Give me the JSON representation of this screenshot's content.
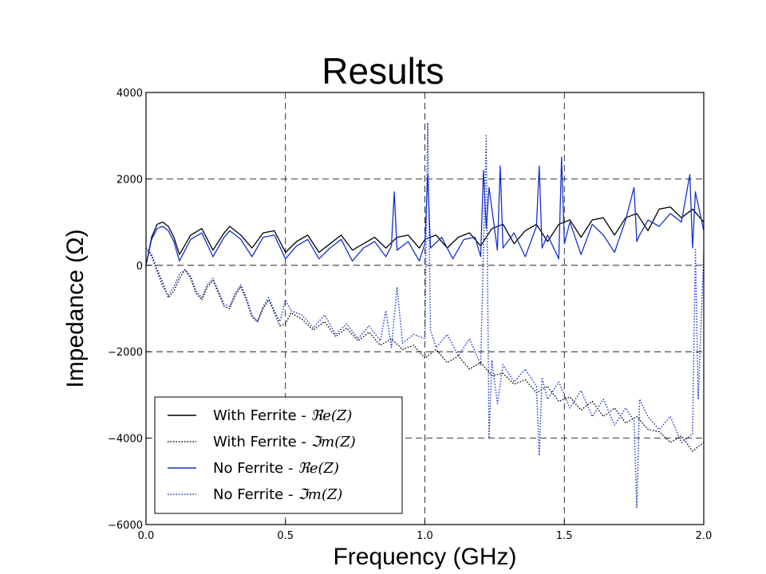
{
  "slide": {
    "title": "Results"
  },
  "chart_data": {
    "type": "line",
    "xlabel": "Frequency (GHz)",
    "ylabel": "Impedance (Ω)",
    "xlim": [
      0.0,
      2.0
    ],
    "ylim": [
      -6000,
      4000
    ],
    "xticks": [
      0.0,
      0.5,
      1.0,
      1.5,
      2.0
    ],
    "xtick_labels": [
      "0.0",
      "0.5",
      "1.0",
      "1.5",
      "2.0"
    ],
    "yticks": [
      -6000,
      -4000,
      -2000,
      0,
      2000,
      4000
    ],
    "ytick_labels": [
      "−6000",
      "−4000",
      "−2000",
      "0",
      "2000",
      "4000"
    ],
    "grid": "dashed, major ticks",
    "legend_position": "lower-left",
    "series": [
      {
        "name": "With Ferrite - ℜe(Z)",
        "label_prefix": "With Ferrite - ",
        "label_math": "ℜe(Z)",
        "color": "#000000",
        "style": "solid",
        "x": [
          0.0,
          0.02,
          0.04,
          0.06,
          0.08,
          0.1,
          0.12,
          0.16,
          0.2,
          0.24,
          0.28,
          0.3,
          0.34,
          0.38,
          0.42,
          0.46,
          0.5,
          0.54,
          0.58,
          0.62,
          0.66,
          0.7,
          0.74,
          0.78,
          0.82,
          0.86,
          0.9,
          0.94,
          0.98,
          1.0,
          1.04,
          1.08,
          1.12,
          1.16,
          1.2,
          1.24,
          1.28,
          1.32,
          1.36,
          1.4,
          1.44,
          1.48,
          1.52,
          1.56,
          1.6,
          1.64,
          1.68,
          1.72,
          1.76,
          1.8,
          1.84,
          1.88,
          1.92,
          1.96,
          2.0
        ],
        "y": [
          0,
          650,
          950,
          1000,
          900,
          650,
          250,
          700,
          850,
          350,
          750,
          900,
          700,
          400,
          750,
          800,
          300,
          550,
          700,
          300,
          500,
          700,
          350,
          500,
          650,
          400,
          650,
          700,
          400,
          600,
          700,
          400,
          650,
          750,
          450,
          850,
          950,
          500,
          800,
          950,
          550,
          950,
          1050,
          650,
          1050,
          1100,
          700,
          1100,
          1200,
          800,
          1300,
          1350,
          1100,
          1300,
          1000
        ]
      },
      {
        "name": "With Ferrite - ℑm(Z)",
        "label_prefix": "With Ferrite - ",
        "label_math": "ℑm(Z)",
        "color": "#000000",
        "style": "dotted",
        "x": [
          0.0,
          0.02,
          0.04,
          0.06,
          0.08,
          0.1,
          0.12,
          0.14,
          0.16,
          0.18,
          0.2,
          0.22,
          0.24,
          0.26,
          0.28,
          0.3,
          0.32,
          0.34,
          0.36,
          0.38,
          0.4,
          0.42,
          0.44,
          0.46,
          0.48,
          0.5,
          0.52,
          0.56,
          0.6,
          0.64,
          0.68,
          0.72,
          0.76,
          0.8,
          0.84,
          0.88,
          0.92,
          0.96,
          1.0,
          1.04,
          1.08,
          1.12,
          1.16,
          1.2,
          1.24,
          1.28,
          1.32,
          1.36,
          1.4,
          1.44,
          1.48,
          1.52,
          1.56,
          1.6,
          1.64,
          1.68,
          1.72,
          1.76,
          1.8,
          1.84,
          1.88,
          1.92,
          1.96,
          2.0
        ],
        "y": [
          400,
          250,
          -100,
          -400,
          -750,
          -600,
          -300,
          -100,
          -300,
          -650,
          -800,
          -500,
          -350,
          -650,
          -950,
          -1000,
          -700,
          -500,
          -800,
          -1200,
          -1300,
          -1000,
          -800,
          -1100,
          -1400,
          -1350,
          -1100,
          -1250,
          -1500,
          -1300,
          -1650,
          -1450,
          -1750,
          -1550,
          -1850,
          -1700,
          -1950,
          -1850,
          -2150,
          -1950,
          -2250,
          -2100,
          -2400,
          -2250,
          -2550,
          -2500,
          -2750,
          -2650,
          -2950,
          -2800,
          -3150,
          -3050,
          -3350,
          -3150,
          -3500,
          -3300,
          -3650,
          -3500,
          -3800,
          -3850,
          -4100,
          -3950,
          -4300,
          -4100
        ]
      },
      {
        "name": "No Ferrite - ℜe(Z)",
        "label_prefix": "No Ferrite - ",
        "label_math": "ℜe(Z)",
        "color": "#1530c8",
        "style": "solid",
        "x": [
          0.0,
          0.02,
          0.04,
          0.06,
          0.08,
          0.1,
          0.12,
          0.16,
          0.2,
          0.24,
          0.28,
          0.3,
          0.34,
          0.38,
          0.42,
          0.46,
          0.5,
          0.54,
          0.58,
          0.62,
          0.66,
          0.7,
          0.74,
          0.78,
          0.82,
          0.86,
          0.88,
          0.89,
          0.9,
          0.94,
          0.98,
          1.0,
          1.01,
          1.02,
          1.06,
          1.1,
          1.14,
          1.18,
          1.2,
          1.21,
          1.22,
          1.23,
          1.26,
          1.27,
          1.28,
          1.32,
          1.36,
          1.4,
          1.41,
          1.42,
          1.44,
          1.48,
          1.49,
          1.5,
          1.52,
          1.56,
          1.6,
          1.64,
          1.68,
          1.72,
          1.75,
          1.76,
          1.77,
          1.8,
          1.84,
          1.88,
          1.92,
          1.95,
          1.96,
          1.97,
          2.0
        ],
        "y": [
          0,
          600,
          850,
          900,
          800,
          550,
          100,
          600,
          750,
          200,
          650,
          800,
          600,
          200,
          650,
          700,
          150,
          450,
          600,
          150,
          400,
          600,
          100,
          400,
          550,
          200,
          450,
          1700,
          350,
          550,
          100,
          500,
          2100,
          400,
          650,
          150,
          600,
          650,
          200,
          2200,
          850,
          1800,
          350,
          2300,
          400,
          750,
          200,
          900,
          2300,
          400,
          700,
          150,
          2500,
          500,
          1000,
          250,
          950,
          700,
          300,
          1050,
          1800,
          550,
          700,
          1050,
          900,
          1200,
          1000,
          2100,
          400,
          1700,
          800
        ]
      },
      {
        "name": "No Ferrite - ℑm(Z)",
        "label_prefix": "No Ferrite - ",
        "label_math": "ℑm(Z)",
        "color": "#1530c8",
        "style": "dotted",
        "x": [
          0.0,
          0.02,
          0.04,
          0.06,
          0.08,
          0.1,
          0.12,
          0.14,
          0.16,
          0.18,
          0.2,
          0.22,
          0.24,
          0.26,
          0.28,
          0.3,
          0.32,
          0.34,
          0.36,
          0.38,
          0.4,
          0.42,
          0.44,
          0.46,
          0.48,
          0.5,
          0.52,
          0.56,
          0.6,
          0.64,
          0.68,
          0.72,
          0.76,
          0.8,
          0.84,
          0.86,
          0.88,
          0.9,
          0.92,
          0.96,
          1.0,
          1.01,
          1.02,
          1.04,
          1.08,
          1.12,
          1.16,
          1.2,
          1.22,
          1.23,
          1.24,
          1.26,
          1.28,
          1.32,
          1.36,
          1.4,
          1.41,
          1.42,
          1.44,
          1.48,
          1.52,
          1.56,
          1.6,
          1.64,
          1.68,
          1.72,
          1.75,
          1.76,
          1.77,
          1.8,
          1.84,
          1.88,
          1.92,
          1.96,
          1.97,
          1.98,
          2.0
        ],
        "y": [
          400,
          200,
          -150,
          -500,
          -700,
          -500,
          -200,
          -100,
          -250,
          -600,
          -750,
          -450,
          -300,
          -600,
          -900,
          -950,
          -650,
          -450,
          -750,
          -1150,
          -1300,
          -950,
          -750,
          -1050,
          -1300,
          -800,
          -1050,
          -1150,
          -1450,
          -1150,
          -1600,
          -1350,
          -1700,
          -1400,
          -1750,
          -1050,
          -1900,
          -500,
          -1800,
          -1600,
          -1700,
          3300,
          -1500,
          -1900,
          -1600,
          -2100,
          -1700,
          -2300,
          3000,
          -4000,
          -2200,
          -3200,
          -2300,
          -2700,
          -2400,
          -2800,
          -4400,
          -2600,
          -3100,
          -2700,
          -3300,
          -2900,
          -3500,
          -3100,
          -3700,
          -3300,
          -3600,
          -5600,
          -3100,
          -3500,
          -3800,
          -3500,
          -4100,
          -3900,
          400,
          -3100,
          300
        ]
      }
    ]
  }
}
